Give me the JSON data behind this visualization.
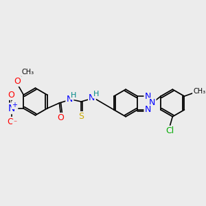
{
  "bg_color": "#ECECEC",
  "bond_color": "#000000",
  "atom_colors": {
    "O": "#FF0000",
    "N": "#0000FF",
    "S": "#CCAA00",
    "Cl": "#00AA00",
    "H": "#008888",
    "C": "#000000"
  },
  "fs": 8,
  "fig_width": 3.0,
  "fig_height": 3.0,
  "dpi": 100
}
